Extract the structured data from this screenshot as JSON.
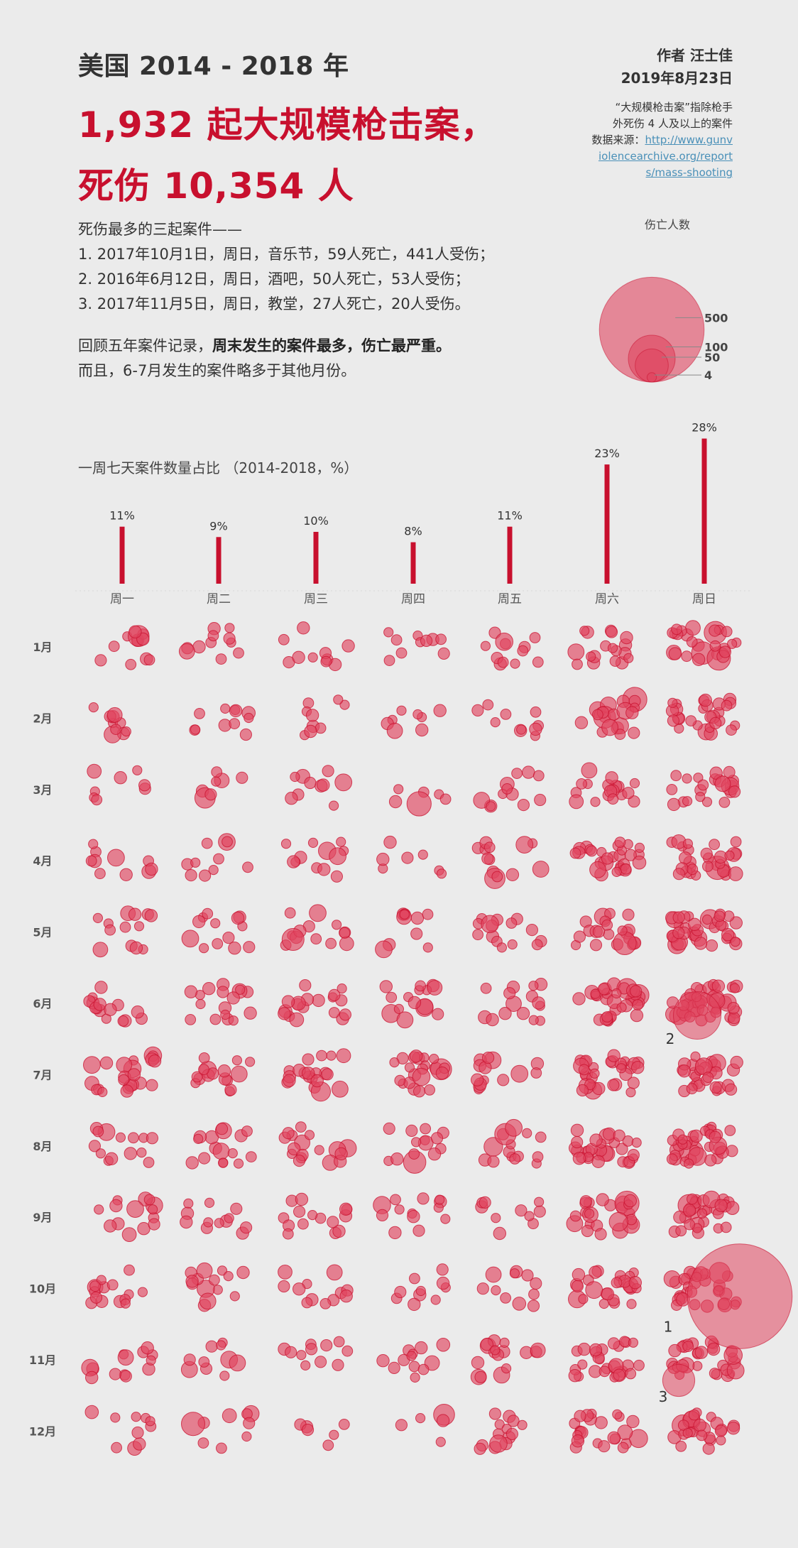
{
  "header": {
    "subtitle": "美国 2014 - 2018 年",
    "headline_line1": "1,932 起大规模枪击案，",
    "headline_line2": "死伤 10,354 人",
    "author": "作者  汪士佳",
    "date": "2019年8月23日",
    "note_line1": "“大规模枪击案”指除枪手",
    "note_line2": "外死伤 4 人及以上的案件",
    "source_label": "数据来源：",
    "source_link": "http://www.gunviolencearchive.org/reports/mass-shooting"
  },
  "top3": {
    "intro": "死伤最多的三起案件——",
    "items": [
      "1. 2017年10月1日，周日，音乐节，59人死亡，441人受伤；",
      "2. 2016年6月12日，周日，酒吧，50人死亡，53人受伤；",
      "3. 2017年11月5日，周日，教堂，27人死亡，20人受伤。"
    ]
  },
  "insight": {
    "prefix": "回顾五年案件记录，",
    "bold": "周末发生的案件最多，伤亡最严重。",
    "line2": "而且，6-7月发生的案件略多于其他月份。"
  },
  "legend": {
    "title": "伤亡人数",
    "values": [
      500,
      100,
      50,
      4
    ],
    "labels": [
      "500",
      "100",
      "50",
      "4"
    ]
  },
  "colors": {
    "accent": "#c8102e",
    "bubble_fill": "#e0455f",
    "bubble_stroke": "#c8102e",
    "bg": "#ebebeb",
    "link": "#4a90b8"
  },
  "chart_data": [
    {
      "type": "bar",
      "title": "一周七天案件数量占比 （2014-2018，%）",
      "categories": [
        "周一",
        "周二",
        "周三",
        "周四",
        "周五",
        "周六",
        "周日"
      ],
      "values": [
        11,
        9,
        10,
        8,
        11,
        23,
        28
      ],
      "value_labels": [
        "11%",
        "9%",
        "10%",
        "8%",
        "11%",
        "23%",
        "28%"
      ],
      "ylim": [
        0,
        28
      ]
    },
    {
      "type": "scatter",
      "x_categories": [
        "周一",
        "周二",
        "周三",
        "周四",
        "周五",
        "周六",
        "周日"
      ],
      "y_categories": [
        "1月",
        "2月",
        "3月",
        "4月",
        "5月",
        "6月",
        "7月",
        "8月",
        "9月",
        "10月",
        "11月",
        "12月"
      ],
      "size_metric": "伤亡人数",
      "cell_counts": [
        [
          12,
          11,
          10,
          10,
          12,
          18,
          26
        ],
        [
          10,
          11,
          9,
          8,
          10,
          20,
          28
        ],
        [
          8,
          7,
          10,
          6,
          12,
          18,
          22
        ],
        [
          10,
          10,
          12,
          7,
          13,
          28,
          30
        ],
        [
          13,
          13,
          14,
          10,
          15,
          22,
          38
        ],
        [
          15,
          17,
          18,
          15,
          15,
          34,
          45
        ],
        [
          22,
          16,
          20,
          22,
          14,
          32,
          30
        ],
        [
          14,
          16,
          17,
          14,
          15,
          30,
          38
        ],
        [
          14,
          12,
          15,
          13,
          10,
          25,
          30
        ],
        [
          15,
          14,
          12,
          10,
          11,
          26,
          32
        ],
        [
          13,
          10,
          11,
          12,
          16,
          28,
          32
        ],
        [
          10,
          9,
          6,
          5,
          14,
          24,
          26
        ]
      ],
      "annotations": [
        {
          "label": "1",
          "weekday": "周日",
          "month": "10月",
          "casualties": 500
        },
        {
          "label": "2",
          "weekday": "周日",
          "month": "6月",
          "casualties": 103
        },
        {
          "label": "3",
          "weekday": "周日",
          "month": "11月",
          "casualties": 47
        }
      ]
    }
  ]
}
